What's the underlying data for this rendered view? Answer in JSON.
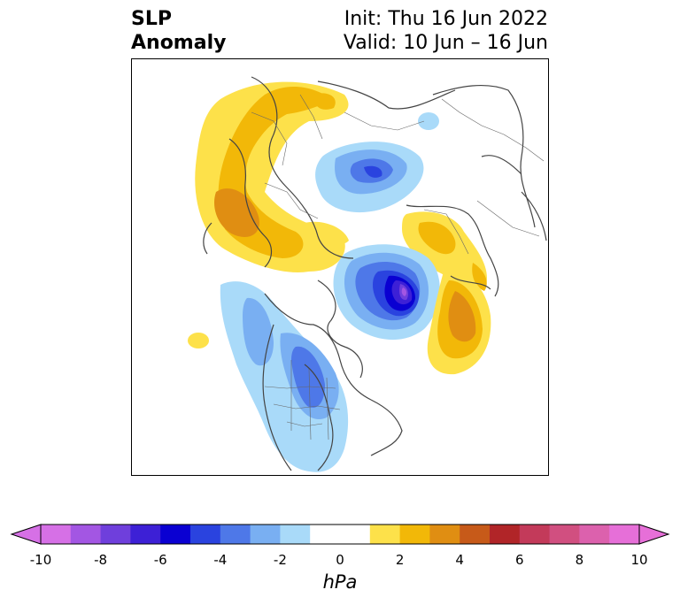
{
  "title": {
    "left_line1": "SLP",
    "left_line2": "Anomaly",
    "right_line1": "Init: Thu 16 Jun 2022",
    "right_line2": "Valid: 10 Jun – 16 Jun"
  },
  "colorbar": {
    "unit": "hPa",
    "ticks": [
      "-10",
      "-8",
      "-6",
      "-4",
      "-2",
      "0",
      "2",
      "4",
      "6",
      "8",
      "10"
    ],
    "colors": [
      "#d670e6",
      "#a356e3",
      "#6f3fdc",
      "#3d20d6",
      "#0a00d2",
      "#2a43df",
      "#4e78e8",
      "#79aff2",
      "#a9daf9",
      "#ffffff",
      "#ffffff",
      "#fde14a",
      "#f2b808",
      "#e08e12",
      "#c75a19",
      "#b12528",
      "#c33a5a",
      "#d14f80",
      "#dc61ad",
      "#e66fd8"
    ]
  },
  "map": {
    "projection": "north-polar-stereographic",
    "variable": "sea-level-pressure-anomaly"
  }
}
